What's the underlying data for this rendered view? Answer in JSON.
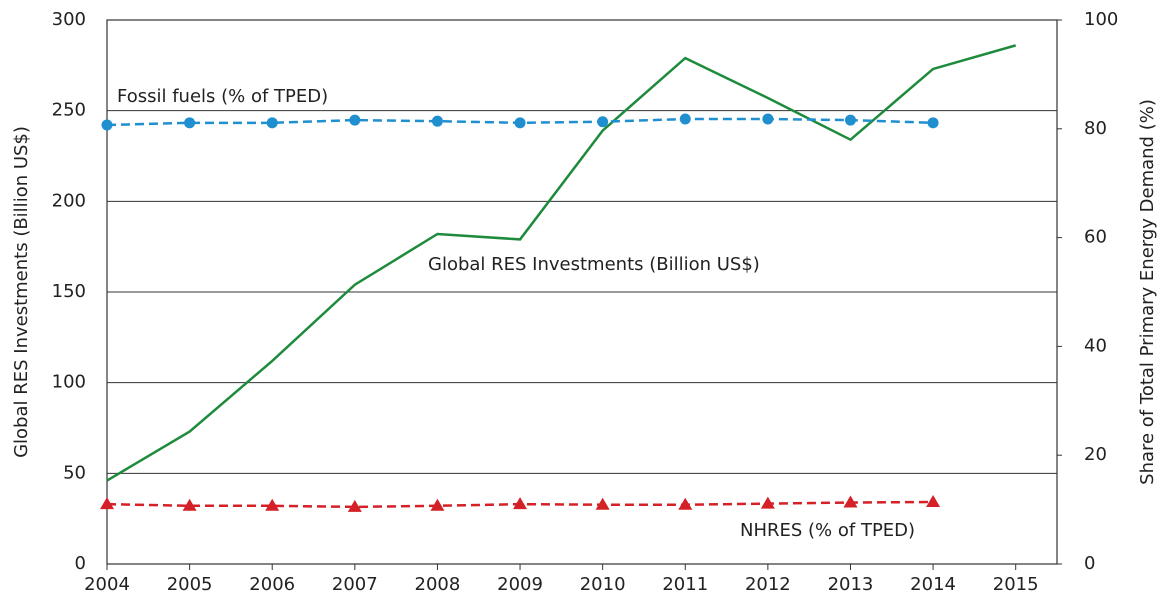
{
  "chart_data": {
    "type": "line",
    "x": [
      2004,
      2005,
      2006,
      2007,
      2008,
      2009,
      2010,
      2011,
      2012,
      2013,
      2014,
      2015
    ],
    "xlim": [
      2004,
      2015.5
    ],
    "xticks": [
      2004,
      2005,
      2006,
      2007,
      2008,
      2009,
      2010,
      2011,
      2012,
      2013,
      2014,
      2015
    ],
    "ylim": [
      0,
      300
    ],
    "yticks": [
      0,
      50,
      100,
      150,
      200,
      250,
      300
    ],
    "y2lim": [
      0,
      100
    ],
    "y2ticks": [
      0,
      20,
      40,
      60,
      80,
      100
    ],
    "y_label": "Global RES Investments (Billion US$)",
    "y2_label": "Share of Total Primary  Energy Demand (%)",
    "grid": true,
    "series": [
      {
        "name": "Global RES Investments (Billion US$)",
        "color": "#1e8b3c",
        "values": [
          46,
          73,
          112,
          154,
          182,
          179,
          239,
          279,
          257,
          234,
          273,
          286
        ]
      },
      {
        "name": "Fossil fuels (% of TPED)",
        "color": "#1f8fd0",
        "axis": "y2",
        "marker": "circle",
        "dashed": true,
        "values": [
          80.7,
          81.1,
          81.1,
          81.6,
          81.4,
          81.1,
          81.3,
          81.8,
          81.8,
          81.6,
          81.1,
          null
        ]
      },
      {
        "name": "NHRES (% of TPED)",
        "color": "#d42027",
        "axis": "y2",
        "marker": "triangle",
        "dashed": true,
        "values": [
          11.0,
          10.7,
          10.7,
          10.5,
          10.7,
          11.0,
          10.9,
          10.9,
          11.1,
          11.3,
          11.4,
          null
        ]
      }
    ]
  }
}
